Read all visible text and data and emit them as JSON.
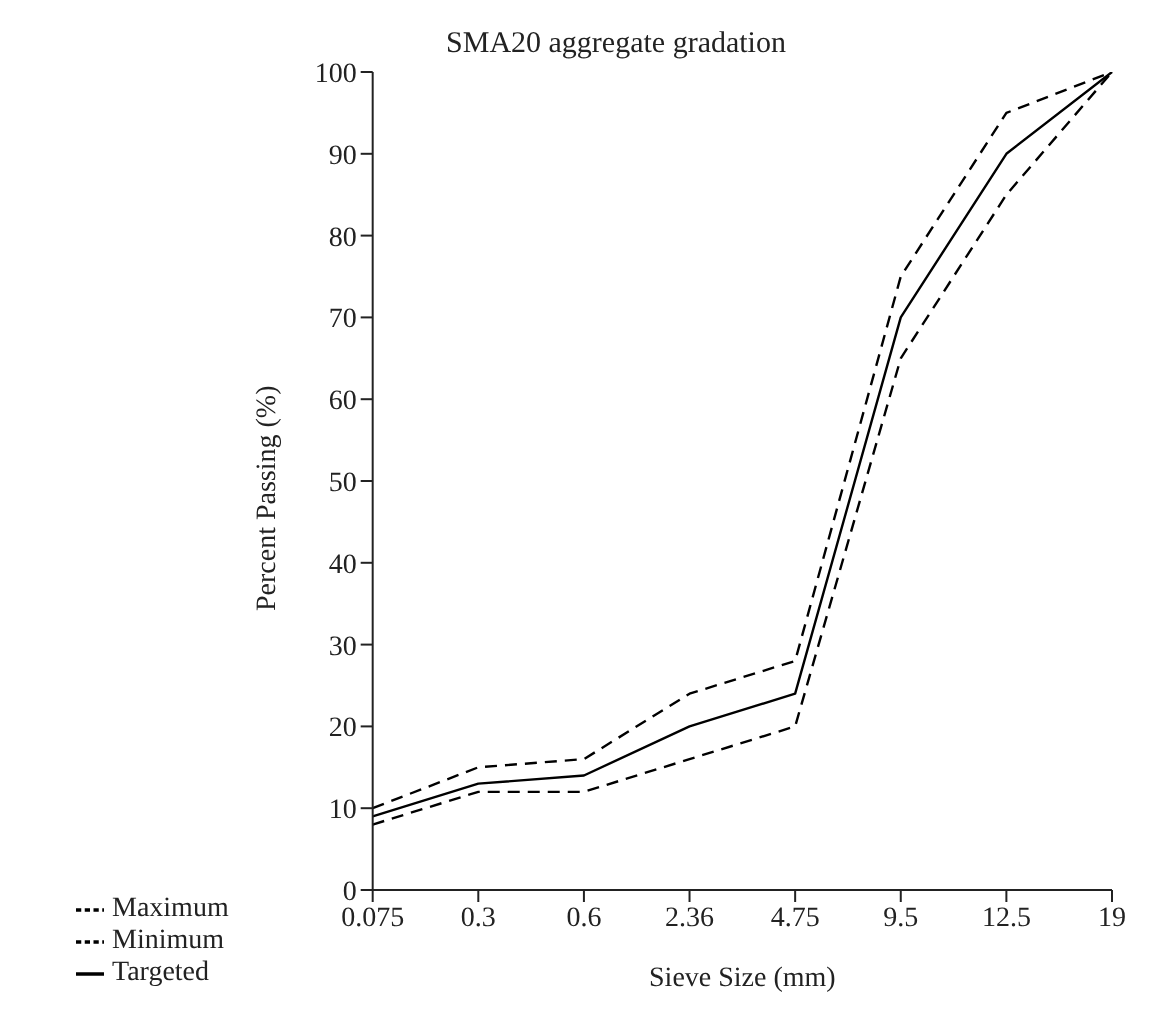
{
  "chart_data": {
    "type": "line",
    "title": "SMA20 aggregate gradation",
    "xlabel": "Sieve Size (mm)",
    "ylabel": "Percent Passing (%)",
    "categories": [
      "0.075",
      "0.3",
      "0.6",
      "2.36",
      "4.75",
      "9.5",
      "12.5",
      "19"
    ],
    "series": [
      {
        "name": "Minimum",
        "color": "#000000",
        "line_style": "dashed",
        "values": [
          8,
          12,
          12,
          16,
          20,
          65,
          85,
          100
        ]
      },
      {
        "name": "Maximum",
        "color": "#000000",
        "line_style": "dashed",
        "values": [
          10,
          15,
          16,
          24,
          28,
          75,
          95,
          100
        ]
      },
      {
        "name": "Targeted",
        "color": "#000000",
        "line_style": "solid",
        "values": [
          9,
          13,
          14,
          20,
          24,
          70,
          90,
          100
        ]
      }
    ],
    "ylim": [
      0,
      100
    ],
    "yticks": [
      0,
      10,
      20,
      30,
      40,
      50,
      60,
      70,
      80,
      90,
      100
    ],
    "grid": false,
    "legend": "bottom",
    "marker": "none"
  }
}
